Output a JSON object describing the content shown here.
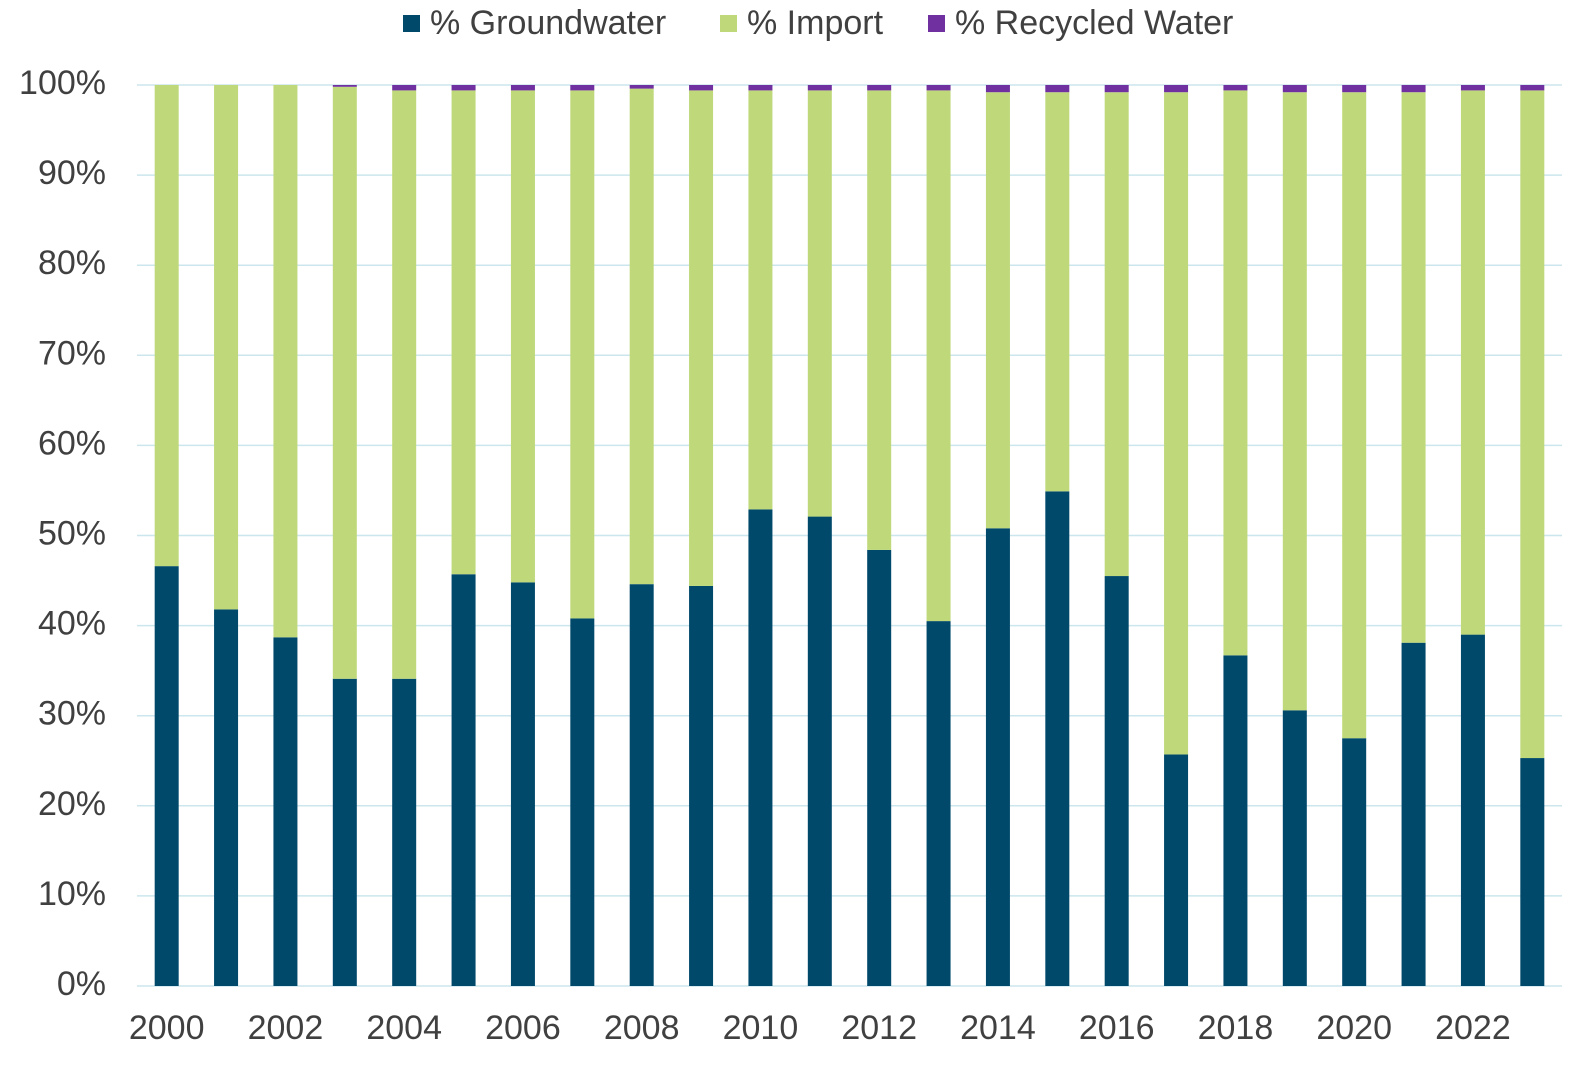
{
  "chart_data": {
    "type": "stacked_bar",
    "categories": [
      2000,
      null,
      2002,
      null,
      2004,
      null,
      2006,
      null,
      2008,
      null,
      2010,
      null,
      2012,
      null,
      2014,
      null,
      2016,
      null,
      2018,
      null,
      2020,
      null,
      2022,
      null
    ],
    "series": [
      {
        "name": "% Groundwater",
        "color": "#00496b",
        "values": [
          46.6,
          41.8,
          38.7,
          34.1,
          34.1,
          45.7,
          44.8,
          40.8,
          44.6,
          44.4,
          52.9,
          52.1,
          48.4,
          40.5,
          50.8,
          54.9,
          45.5,
          25.7,
          36.7,
          30.6,
          27.5,
          38.1,
          39.0,
          25.3
        ]
      },
      {
        "name": "% Import",
        "color": "#bfd97a",
        "values": [
          53.4,
          58.2,
          61.3,
          65.7,
          65.3,
          53.7,
          54.6,
          58.6,
          55.0,
          55.0,
          46.5,
          47.3,
          51.0,
          58.9,
          48.4,
          44.3,
          53.7,
          73.5,
          62.7,
          68.6,
          71.7,
          61.1,
          60.4,
          74.1
        ]
      },
      {
        "name": "% Recycled Water",
        "color": "#7030a0",
        "values": [
          0,
          0,
          0,
          0.2,
          0.6,
          0.6,
          0.6,
          0.6,
          0.4,
          0.6,
          0.6,
          0.6,
          0.6,
          0.6,
          0.8,
          0.8,
          0.8,
          0.8,
          0.6,
          0.8,
          0.8,
          0.8,
          0.6,
          0.6
        ]
      }
    ],
    "ylim": [
      0,
      100
    ],
    "yticks": [
      {
        "value": 0,
        "label": "0%"
      },
      {
        "value": 10,
        "label": "10%"
      },
      {
        "value": 20,
        "label": "20%"
      },
      {
        "value": 30,
        "label": "30%"
      },
      {
        "value": 40,
        "label": "40%"
      },
      {
        "value": 50,
        "label": "50%"
      },
      {
        "value": 60,
        "label": "60%"
      },
      {
        "value": 70,
        "label": "70%"
      },
      {
        "value": 80,
        "label": "80%"
      },
      {
        "value": 90,
        "label": "90%"
      },
      {
        "value": 100,
        "label": "100%"
      }
    ],
    "grid": true,
    "legend": "top"
  }
}
